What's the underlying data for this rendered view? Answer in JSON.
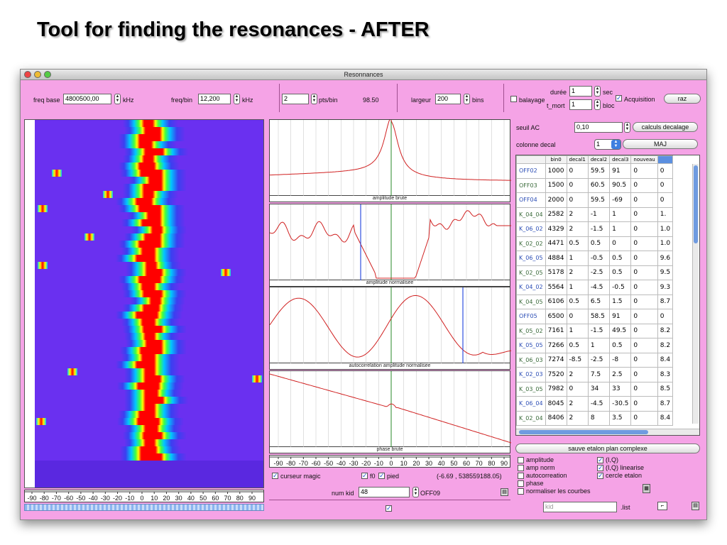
{
  "slide_title": "Tool for finding the resonances - AFTER",
  "window": {
    "title": "Resonnances"
  },
  "toolbar": {
    "freq_base_label": "freq base",
    "freq_base_value": "4800500,00",
    "freq_base_unit": "kHz",
    "freq_bin_label": "freq/bin",
    "freq_bin_value": "12,200",
    "freq_bin_unit": "kHz",
    "pts_value": "2",
    "pts_label": "pts/bin",
    "pts_readout": "98.50",
    "largeur_label": "largeur",
    "largeur_value": "200",
    "bins_label": "bins",
    "balayage_label": "balayage",
    "duree_label": "durée",
    "duree_value": "1",
    "sec_label": "sec",
    "tmort_label": "t_mort",
    "tmort_value": "1",
    "bloc_label": "bloc",
    "acquisition_label": "Acquisition",
    "raz_label": "raz"
  },
  "graphs": [
    {
      "caption": "amplitude brute"
    },
    {
      "caption": "amplitude normalisee"
    },
    {
      "caption": "autocorrelation amplitude normalisee"
    },
    {
      "caption": "phase brute"
    }
  ],
  "axis_ticks": [
    "-90",
    "-80",
    "-70",
    "-60",
    "-50",
    "-40",
    "-30",
    "-20",
    "-10",
    "0",
    "10",
    "20",
    "30",
    "40",
    "50",
    "60",
    "70",
    "80",
    "90"
  ],
  "controls": {
    "curseur_magic": "curseur magic",
    "f0": "f0",
    "pied": "pied",
    "coords": "(-6.69 , 538559188.05)",
    "num_kid_label": "num kid",
    "num_kid_value": "48",
    "off_label": "OFF09"
  },
  "right": {
    "seuil_label": "seuil AC",
    "seuil_value": "0,10",
    "calculs_label": "calculs decalage",
    "colonne_label": "colonne decal",
    "colonne_value": "1",
    "maj_label": "MAJ",
    "sauve_label": "sauve etalon plan complexe",
    "options_left": [
      "amplitude",
      "amp norm",
      "autocorreation",
      "phase",
      "normaliser les courbes"
    ],
    "options_right": [
      "(I,Q)",
      "(I,Q) linearise",
      "cercle etalon"
    ],
    "kid_placeholder": "kid",
    "list_label": ".list"
  },
  "table": {
    "headers": [
      "",
      "bin0",
      "decal1",
      "decal2",
      "decal3",
      "nouveau",
      ""
    ],
    "rows": [
      [
        "OFF02",
        "1000",
        "0",
        "59.5",
        "91",
        "0",
        "0"
      ],
      [
        "OFF03",
        "1500",
        "0",
        "60.5",
        "90.5",
        "0",
        "0"
      ],
      [
        "OFF04",
        "2000",
        "0",
        "59.5",
        "-69",
        "0",
        "0"
      ],
      [
        "K_04_04",
        "2582",
        "2",
        "-1",
        "1",
        "0",
        "1."
      ],
      [
        "K_06_02",
        "4329",
        "2",
        "-1.5",
        "1",
        "0",
        "1.0"
      ],
      [
        "K_02_02",
        "4471",
        "0.5",
        "0.5",
        "0",
        "0",
        "1.0"
      ],
      [
        "K_06_05",
        "4884",
        "1",
        "-0.5",
        "0.5",
        "0",
        "9.6"
      ],
      [
        "K_02_05",
        "5178",
        "2",
        "-2.5",
        "0.5",
        "0",
        "9.5"
      ],
      [
        "K_04_02",
        "5564",
        "1",
        "-4.5",
        "-0.5",
        "0",
        "9.3"
      ],
      [
        "K_04_05",
        "6106",
        "0.5",
        "6.5",
        "1.5",
        "0",
        "8.7"
      ],
      [
        "OFF05",
        "6500",
        "0",
        "58.5",
        "91",
        "0",
        "0"
      ],
      [
        "K_05_02",
        "7161",
        "1",
        "-1.5",
        "49.5",
        "0",
        "8.2"
      ],
      [
        "K_05_05",
        "7266",
        "0.5",
        "1",
        "0.5",
        "0",
        "8.2"
      ],
      [
        "K_06_03",
        "7274",
        "-8.5",
        "-2.5",
        "-8",
        "0",
        "8.4"
      ],
      [
        "K_02_03",
        "7520",
        "2",
        "7.5",
        "2.5",
        "0",
        "8.3"
      ],
      [
        "K_03_05",
        "7982",
        "0",
        "34",
        "33",
        "0",
        "8.5"
      ],
      [
        "K_06_04",
        "8045",
        "2",
        "-4.5",
        "-30.5",
        "0",
        "8.7"
      ],
      [
        "K_02_04",
        "8406",
        "2",
        "8",
        "3.5",
        "0",
        "8.4"
      ]
    ]
  }
}
